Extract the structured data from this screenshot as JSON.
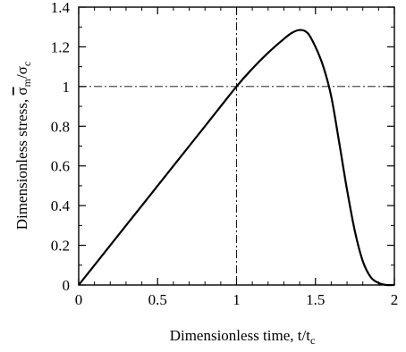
{
  "chart_data": {
    "type": "line",
    "title": "",
    "xlabel": {
      "main": "Dimensionless time, t/t",
      "sub": "c"
    },
    "ylabel": {
      "prefix": "Dimensionless stress, ",
      "sym1": "σ",
      "sub1": "m",
      "slash": "/",
      "sym2": "σ",
      "sub2": "c"
    },
    "xlim": [
      0,
      2
    ],
    "ylim": [
      0,
      1.4
    ],
    "xticks": [
      0,
      0.5,
      1,
      1.5,
      2
    ],
    "xtick_labels": [
      "0",
      "0.5",
      "1",
      "1.5",
      "2"
    ],
    "yticks": [
      0,
      0.2,
      0.4,
      0.6,
      0.8,
      1,
      1.2,
      1.4
    ],
    "ytick_labels": [
      "0",
      "0.2",
      "0.4",
      "0.6",
      "0.8",
      "1",
      "1.2",
      "1.4"
    ],
    "grid": false,
    "reference_lines": [
      {
        "orientation": "vertical",
        "x": 1,
        "style": "dash-dot"
      },
      {
        "orientation": "horizontal",
        "y": 1,
        "style": "dash-dot"
      }
    ],
    "series": [
      {
        "color": "#000000",
        "x": [
          0,
          0.2,
          0.4,
          0.6,
          0.8,
          1.0,
          1.1,
          1.2,
          1.3,
          1.35,
          1.4,
          1.45,
          1.5,
          1.55,
          1.6,
          1.65,
          1.7,
          1.75,
          1.8,
          1.85,
          1.9,
          1.95,
          2.0
        ],
        "y": [
          0,
          0.2,
          0.4,
          0.6,
          0.8,
          1.0,
          1.09,
          1.17,
          1.24,
          1.27,
          1.285,
          1.27,
          1.2,
          1.1,
          0.95,
          0.72,
          0.48,
          0.27,
          0.12,
          0.04,
          0.01,
          0.0,
          0.0
        ]
      }
    ]
  }
}
